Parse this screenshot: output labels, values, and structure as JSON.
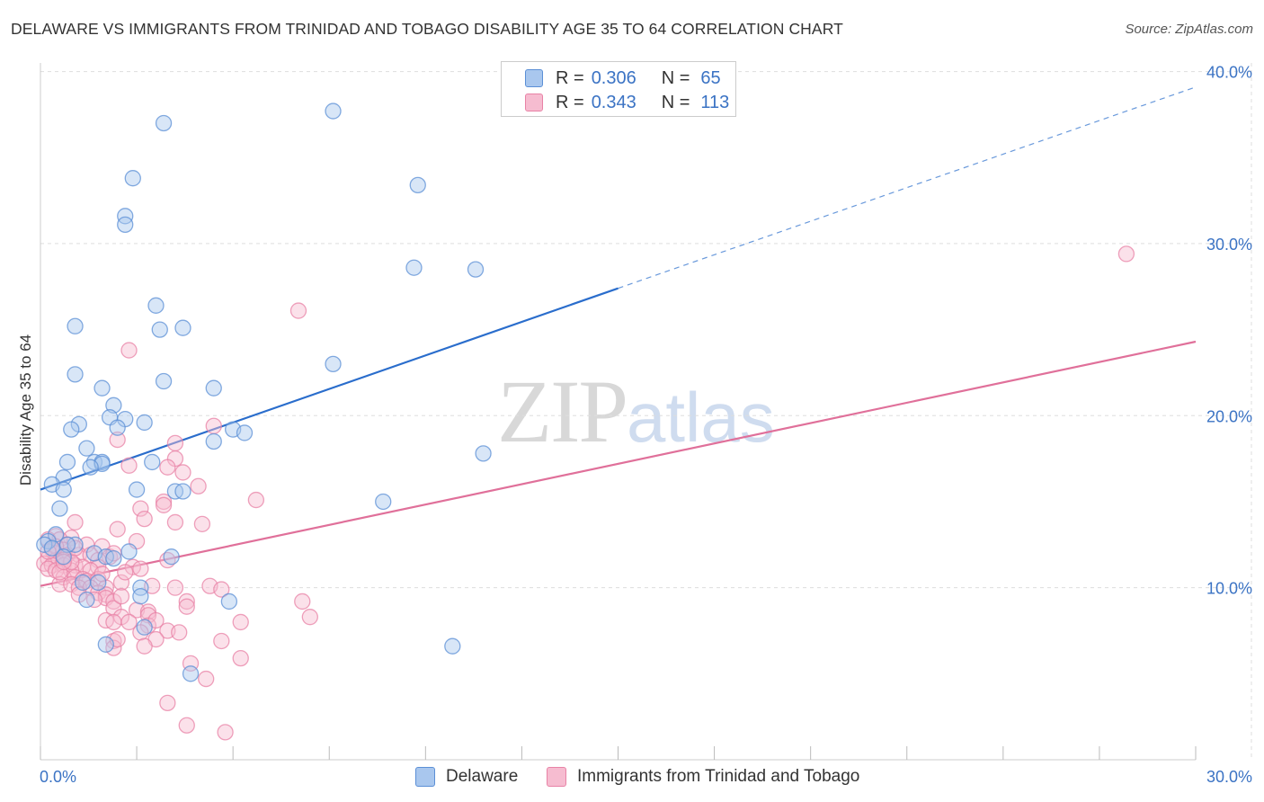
{
  "header": {
    "title": "DELAWARE VS IMMIGRANTS FROM TRINIDAD AND TOBAGO DISABILITY AGE 35 TO 64 CORRELATION CHART",
    "source": "Source: ZipAtlas.com"
  },
  "watermark": {
    "zip": "ZIP",
    "atlas": "atlas"
  },
  "legend": {
    "rows": [
      {
        "r_label": "R =",
        "r_value": "0.306",
        "n_label": "N =",
        "n_value": "65"
      },
      {
        "r_label": "R =",
        "r_value": "0.343",
        "n_label": "N =",
        "n_value": "113"
      }
    ]
  },
  "bottom_legend": {
    "series_a": "Delaware",
    "series_b": "Immigrants from Trinidad and Tobago"
  },
  "colors": {
    "delaware_fill": "#a9c7ee",
    "delaware_stroke": "#5b8fd6",
    "delaware_line": "#2a6dcc",
    "trinidad_fill": "#f6bcd0",
    "trinidad_stroke": "#e882a6",
    "trinidad_line": "#e0709a",
    "grid": "#dddddd",
    "tick_text": "#3b73c4"
  },
  "chart_data": {
    "type": "scatter",
    "title": "DELAWARE VS IMMIGRANTS FROM TRINIDAD AND TOBAGO DISABILITY AGE 35 TO 64 CORRELATION CHART",
    "xlabel": "",
    "ylabel": "Disability Age 35 to 64",
    "xlim": [
      0,
      30
    ],
    "ylim": [
      0,
      40.5
    ],
    "x_tick_labels": [
      "0.0%",
      "30.0%"
    ],
    "y_ticks": [
      10,
      20,
      30,
      40
    ],
    "y_tick_labels": [
      "10.0%",
      "20.0%",
      "30.0%",
      "40.0%"
    ],
    "grid": true,
    "legend_position": "top-center",
    "series": [
      {
        "name": "Delaware",
        "R": 0.306,
        "N": 65,
        "trend": {
          "x0": 0,
          "y0": 15.7,
          "x1": 15,
          "y1": 27.4,
          "dash_to_x": 30,
          "dash_to_y": 39.1
        },
        "points": [
          [
            3.2,
            37.0
          ],
          [
            7.6,
            37.7
          ],
          [
            2.4,
            33.8
          ],
          [
            9.8,
            33.4
          ],
          [
            2.2,
            31.6
          ],
          [
            2.2,
            31.1
          ],
          [
            9.7,
            28.6
          ],
          [
            11.3,
            28.5
          ],
          [
            3.0,
            26.4
          ],
          [
            0.9,
            25.2
          ],
          [
            3.1,
            25.0
          ],
          [
            3.7,
            25.1
          ],
          [
            7.6,
            23.0
          ],
          [
            0.9,
            22.4
          ],
          [
            3.2,
            22.0
          ],
          [
            1.6,
            21.6
          ],
          [
            4.5,
            21.6
          ],
          [
            1.9,
            20.6
          ],
          [
            1.8,
            19.9
          ],
          [
            2.2,
            19.8
          ],
          [
            2.7,
            19.6
          ],
          [
            1.0,
            19.5
          ],
          [
            0.8,
            19.2
          ],
          [
            2.0,
            19.3
          ],
          [
            5.0,
            19.2
          ],
          [
            5.3,
            19.0
          ],
          [
            4.5,
            18.5
          ],
          [
            1.2,
            18.1
          ],
          [
            11.5,
            17.8
          ],
          [
            0.7,
            17.3
          ],
          [
            1.4,
            17.3
          ],
          [
            1.6,
            17.3
          ],
          [
            1.6,
            17.2
          ],
          [
            1.3,
            17.0
          ],
          [
            2.9,
            17.3
          ],
          [
            0.6,
            16.4
          ],
          [
            0.3,
            16.0
          ],
          [
            0.6,
            15.7
          ],
          [
            2.5,
            15.7
          ],
          [
            3.5,
            15.6
          ],
          [
            3.7,
            15.6
          ],
          [
            8.9,
            15.0
          ],
          [
            0.5,
            14.6
          ],
          [
            0.4,
            13.1
          ],
          [
            0.2,
            12.7
          ],
          [
            0.1,
            12.5
          ],
          [
            0.3,
            12.3
          ],
          [
            0.9,
            12.5
          ],
          [
            0.7,
            12.5
          ],
          [
            1.4,
            12.0
          ],
          [
            2.3,
            12.1
          ],
          [
            0.6,
            11.8
          ],
          [
            1.7,
            11.8
          ],
          [
            1.9,
            11.7
          ],
          [
            3.4,
            11.8
          ],
          [
            1.1,
            10.3
          ],
          [
            1.5,
            10.3
          ],
          [
            2.6,
            10.0
          ],
          [
            1.2,
            9.3
          ],
          [
            2.6,
            9.5
          ],
          [
            4.9,
            9.2
          ],
          [
            1.7,
            6.7
          ],
          [
            2.7,
            7.7
          ],
          [
            10.7,
            6.6
          ],
          [
            3.9,
            5.0
          ]
        ]
      },
      {
        "name": "Immigrants from Trinidad and Tobago",
        "R": 0.343,
        "N": 113,
        "trend": {
          "x0": 0,
          "y0": 10.1,
          "x1": 30,
          "y1": 24.3
        },
        "points": [
          [
            28.2,
            29.4
          ],
          [
            6.7,
            26.1
          ],
          [
            2.3,
            23.8
          ],
          [
            4.5,
            19.4
          ],
          [
            2.0,
            18.6
          ],
          [
            3.5,
            18.4
          ],
          [
            3.5,
            17.5
          ],
          [
            2.3,
            17.1
          ],
          [
            3.3,
            17.0
          ],
          [
            3.7,
            16.7
          ],
          [
            4.1,
            15.9
          ],
          [
            5.6,
            15.1
          ],
          [
            3.2,
            15.0
          ],
          [
            3.2,
            14.8
          ],
          [
            2.6,
            14.6
          ],
          [
            2.7,
            14.0
          ],
          [
            3.5,
            13.8
          ],
          [
            4.2,
            13.7
          ],
          [
            0.9,
            13.8
          ],
          [
            2.0,
            13.4
          ],
          [
            0.4,
            13.0
          ],
          [
            0.8,
            12.9
          ],
          [
            0.2,
            12.8
          ],
          [
            0.5,
            12.8
          ],
          [
            0.7,
            12.5
          ],
          [
            1.2,
            12.5
          ],
          [
            1.6,
            12.4
          ],
          [
            2.5,
            12.7
          ],
          [
            0.3,
            12.2
          ],
          [
            0.6,
            12.2
          ],
          [
            0.4,
            12.0
          ],
          [
            0.7,
            11.9
          ],
          [
            1.0,
            11.9
          ],
          [
            1.3,
            11.9
          ],
          [
            1.8,
            11.8
          ],
          [
            0.2,
            11.7
          ],
          [
            0.4,
            11.6
          ],
          [
            0.6,
            11.6
          ],
          [
            1.5,
            11.6
          ],
          [
            0.1,
            11.4
          ],
          [
            0.3,
            11.3
          ],
          [
            0.6,
            11.3
          ],
          [
            0.9,
            11.3
          ],
          [
            1.1,
            11.2
          ],
          [
            1.5,
            11.2
          ],
          [
            0.2,
            11.1
          ],
          [
            0.4,
            11.0
          ],
          [
            0.8,
            11.0
          ],
          [
            1.3,
            11.0
          ],
          [
            2.4,
            11.2
          ],
          [
            2.6,
            11.1
          ],
          [
            3.3,
            11.6
          ],
          [
            0.6,
            10.6
          ],
          [
            0.9,
            10.6
          ],
          [
            1.1,
            10.5
          ],
          [
            1.2,
            10.4
          ],
          [
            1.5,
            10.5
          ],
          [
            0.5,
            10.2
          ],
          [
            0.8,
            10.2
          ],
          [
            1.0,
            10.0
          ],
          [
            1.3,
            10.0
          ],
          [
            1.7,
            10.0
          ],
          [
            2.1,
            10.3
          ],
          [
            2.9,
            10.1
          ],
          [
            3.5,
            10.0
          ],
          [
            4.4,
            10.1
          ],
          [
            4.7,
            9.9
          ],
          [
            1.0,
            9.6
          ],
          [
            1.5,
            9.7
          ],
          [
            1.7,
            9.6
          ],
          [
            1.7,
            9.4
          ],
          [
            1.9,
            9.2
          ],
          [
            3.8,
            9.2
          ],
          [
            3.8,
            8.9
          ],
          [
            6.8,
            9.2
          ],
          [
            1.9,
            8.8
          ],
          [
            2.5,
            8.7
          ],
          [
            2.8,
            8.6
          ],
          [
            2.8,
            8.4
          ],
          [
            7.0,
            8.3
          ],
          [
            2.1,
            8.3
          ],
          [
            1.7,
            8.1
          ],
          [
            1.9,
            8.0
          ],
          [
            2.3,
            8.0
          ],
          [
            5.2,
            8.0
          ],
          [
            2.8,
            7.8
          ],
          [
            2.6,
            7.4
          ],
          [
            3.3,
            7.5
          ],
          [
            3.6,
            7.4
          ],
          [
            3.0,
            7.0
          ],
          [
            4.7,
            6.9
          ],
          [
            1.9,
            6.9
          ],
          [
            1.9,
            6.5
          ],
          [
            2.7,
            6.6
          ],
          [
            5.2,
            5.9
          ],
          [
            3.9,
            5.6
          ],
          [
            4.3,
            4.7
          ],
          [
            3.3,
            3.3
          ],
          [
            3.8,
            2.0
          ],
          [
            4.8,
            1.6
          ],
          [
            0.4,
            12.4
          ],
          [
            0.8,
            11.5
          ],
          [
            0.5,
            10.9
          ],
          [
            1.6,
            10.8
          ],
          [
            2.1,
            9.5
          ],
          [
            0.2,
            12.1
          ],
          [
            1.9,
            12.0
          ],
          [
            0.9,
            12.3
          ],
          [
            2.2,
            10.9
          ],
          [
            1.4,
            9.3
          ],
          [
            3.0,
            8.1
          ],
          [
            2.0,
            7.0
          ],
          [
            0.6,
            11.5
          ]
        ]
      }
    ]
  }
}
